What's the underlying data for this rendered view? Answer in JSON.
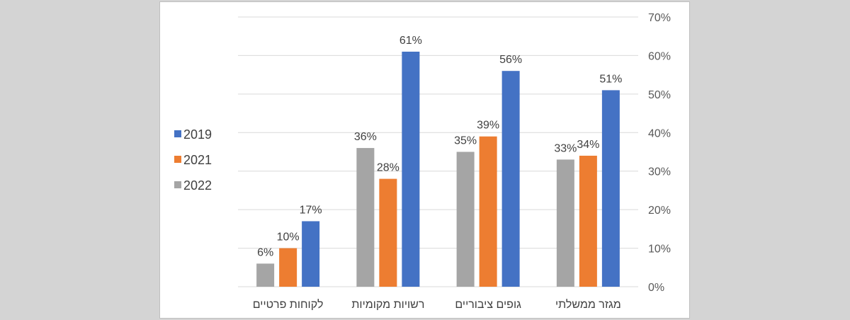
{
  "chart_data": {
    "type": "bar",
    "title": "",
    "xlabel": "",
    "ylabel": "",
    "ylim": [
      0,
      70
    ],
    "y_ticks": [
      "0%",
      "10%",
      "20%",
      "30%",
      "40%",
      "50%",
      "60%",
      "70%"
    ],
    "y_axis_side": "right",
    "categories": [
      "מגזר ממשלתי",
      "גופים ציבוריים",
      "רשויות מקומיות",
      "לקוחות פרטיים"
    ],
    "category_order": "right-to-left",
    "series": [
      {
        "name": "2022",
        "color": "#a5a5a5",
        "values": [
          33,
          35,
          36,
          6
        ],
        "labels": [
          "33%",
          "35%",
          "36%",
          "6%"
        ]
      },
      {
        "name": "2021",
        "color": "#ed7d31",
        "values": [
          34,
          39,
          28,
          10
        ],
        "labels": [
          "34%",
          "39%",
          "28%",
          "10%"
        ]
      },
      {
        "name": "2019",
        "color": "#4472c4",
        "values": [
          51,
          56,
          61,
          17
        ],
        "labels": [
          "51%",
          "56%",
          "61%",
          "17%"
        ]
      }
    ],
    "legend": {
      "placement": "left",
      "entries": [
        {
          "name": "2019",
          "color": "#4472c4"
        },
        {
          "name": "2021",
          "color": "#ed7d31"
        },
        {
          "name": "2022",
          "color": "#a5a5a5"
        }
      ]
    },
    "grid": true,
    "gridline_color": "#d9d9d9"
  }
}
